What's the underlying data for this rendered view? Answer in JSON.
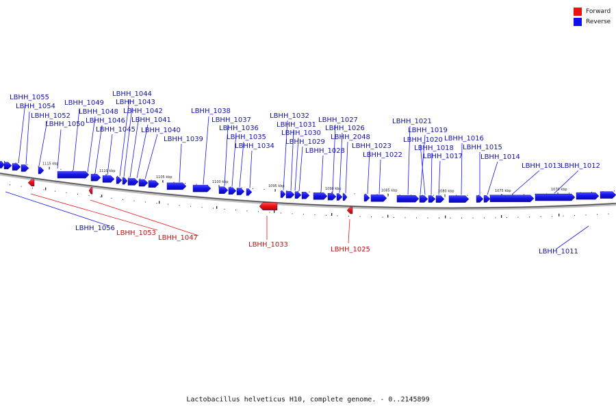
{
  "legend": {
    "forward": {
      "label": "Forward",
      "color": "#ee1111"
    },
    "reverse": {
      "label": "Reverse",
      "color": "#1111ee"
    }
  },
  "caption": "Lactobacillus helveticus H10, complete genome. - 0..2145899",
  "ticks": [
    "1115 kbp",
    "1110 kbp",
    "1105 kbp",
    "1100 kbp",
    "1095 kbp",
    "1090 kbp",
    "1085 kbp",
    "1080 kbp",
    "1075 kbp",
    "1070 kbp"
  ],
  "genes": {
    "reverse": [
      "LBHH_1055",
      "LBHH_1054",
      "LBHH_1052",
      "LBHH_1050",
      "LBHH_1049",
      "LBHH_1048",
      "LBHH_1046",
      "LBHH_1045",
      "LBHH_1044",
      "LBHH_1043",
      "LBHH_1042",
      "LBHH_1041",
      "LBHH_1040",
      "LBHH_1039",
      "LBHH_1038",
      "LBHH_1037",
      "LBHH_1036",
      "LBHH_1035",
      "LBHH_1034",
      "LBHH_1032",
      "LBHH_1031",
      "LBHH_1030",
      "LBHH_1029",
      "LBHH_1028",
      "LBHH_1027",
      "LBHH_1026",
      "LBHH_2048",
      "LBHH_1023",
      "LBHH_1022",
      "LBHH_1021",
      "LBHH_1019",
      "LBHH_1020",
      "LBHH_1018",
      "LBHH_1017",
      "LBHH_1016",
      "LBHH_1015",
      "LBHH_1014",
      "LBHH_1013",
      "LBHH_1012",
      "LBHH_1056",
      "LBHH_1011"
    ],
    "forward": [
      "LBHH_1053",
      "LBHH_1047",
      "LBHH_1033",
      "LBHH_1025"
    ]
  }
}
